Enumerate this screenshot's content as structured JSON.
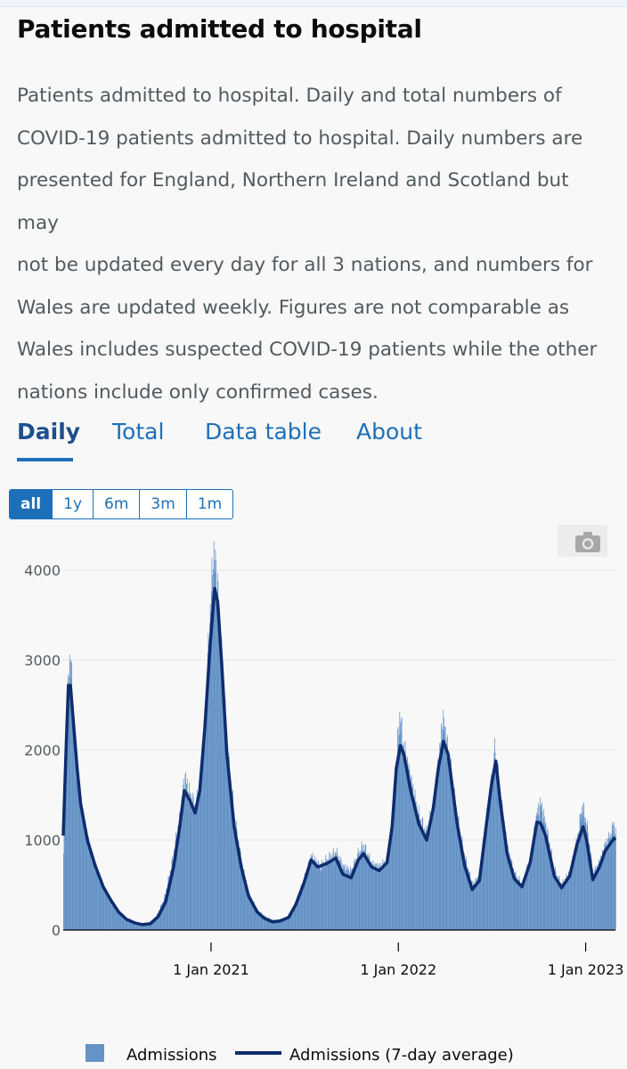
{
  "header": {
    "title": "Patients admitted to hospital",
    "description_lines": [
      "Patients admitted to hospital.  Daily and total numbers of",
      "COVID-19 patients admitted to hospital.  Daily numbers are",
      "presented for England, Northern Ireland and Scotland but may",
      "not be updated every day for all 3 nations, and numbers for",
      "Wales are updated weekly.   Figures are not comparable as",
      "Wales includes suspected COVID-19 patients while the other",
      "nations include only confirmed cases."
    ]
  },
  "tabs": [
    {
      "label": "Daily",
      "active": true
    },
    {
      "label": "Total",
      "active": false
    },
    {
      "label": "Data table",
      "active": false
    },
    {
      "label": "About",
      "active": false
    }
  ],
  "range_buttons": [
    {
      "label": "all",
      "active": true
    },
    {
      "label": "1y",
      "active": false
    },
    {
      "label": "6m",
      "active": false
    },
    {
      "label": "3m",
      "active": false
    },
    {
      "label": "1m",
      "active": false
    }
  ],
  "toolbar": {
    "icon": "camera-icon"
  },
  "colors": {
    "bar_fill": "#6593c6",
    "line": "#0e2c6e",
    "tab": "#1d70b8",
    "grid": "#e6e6e6"
  },
  "chart_data": {
    "type": "bar",
    "x_type": "date",
    "y_ticks": [
      0,
      1000,
      2000,
      3000,
      4000
    ],
    "ylim": [
      0,
      4200
    ],
    "xlim": [
      "2020-03-19",
      "2023-02-28"
    ],
    "x_ticks": [
      {
        "date": "2021-01-01",
        "label": "1 Jan 2021"
      },
      {
        "date": "2022-01-01",
        "label": "1 Jan 2022"
      },
      {
        "date": "2023-01-01",
        "label": "1 Jan 2023"
      }
    ],
    "grid": true,
    "legend_position": "bottom",
    "series": [
      {
        "name": "Admissions",
        "kind": "bar",
        "points": [
          [
            "2020-03-19",
            850
          ],
          [
            "2020-03-25",
            2300
          ],
          [
            "2020-03-29",
            2800
          ],
          [
            "2020-04-01",
            3100
          ],
          [
            "2020-04-05",
            2600
          ],
          [
            "2020-04-12",
            1900
          ],
          [
            "2020-04-20",
            1450
          ],
          [
            "2020-05-01",
            1100
          ],
          [
            "2020-05-15",
            800
          ],
          [
            "2020-06-01",
            500
          ],
          [
            "2020-06-15",
            360
          ],
          [
            "2020-07-01",
            220
          ],
          [
            "2020-07-15",
            130
          ],
          [
            "2020-08-01",
            90
          ],
          [
            "2020-08-15",
            70
          ],
          [
            "2020-09-01",
            80
          ],
          [
            "2020-09-15",
            140
          ],
          [
            "2020-10-01",
            340
          ],
          [
            "2020-10-15",
            700
          ],
          [
            "2020-11-01",
            1250
          ],
          [
            "2020-11-10",
            1700
          ],
          [
            "2020-11-20",
            1500
          ],
          [
            "2020-12-01",
            1350
          ],
          [
            "2020-12-10",
            1600
          ],
          [
            "2020-12-20",
            2300
          ],
          [
            "2020-12-28",
            3300
          ],
          [
            "2021-01-05",
            4150
          ],
          [
            "2021-01-12",
            3900
          ],
          [
            "2021-01-20",
            3100
          ],
          [
            "2021-02-01",
            2000
          ],
          [
            "2021-02-15",
            1250
          ],
          [
            "2021-03-01",
            750
          ],
          [
            "2021-03-15",
            400
          ],
          [
            "2021-04-01",
            220
          ],
          [
            "2021-04-15",
            150
          ],
          [
            "2021-05-01",
            110
          ],
          [
            "2021-05-15",
            110
          ],
          [
            "2021-06-01",
            150
          ],
          [
            "2021-06-15",
            300
          ],
          [
            "2021-07-01",
            560
          ],
          [
            "2021-07-15",
            820
          ],
          [
            "2021-08-01",
            700
          ],
          [
            "2021-08-15",
            780
          ],
          [
            "2021-09-01",
            860
          ],
          [
            "2021-09-15",
            700
          ],
          [
            "2021-10-01",
            650
          ],
          [
            "2021-10-15",
            850
          ],
          [
            "2021-10-25",
            930
          ],
          [
            "2021-11-10",
            720
          ],
          [
            "2021-11-25",
            700
          ],
          [
            "2021-12-10",
            780
          ],
          [
            "2021-12-20",
            1200
          ],
          [
            "2021-12-28",
            1900
          ],
          [
            "2022-01-03",
            2370
          ],
          [
            "2022-01-10",
            2050
          ],
          [
            "2022-01-25",
            1650
          ],
          [
            "2022-02-10",
            1250
          ],
          [
            "2022-02-25",
            1050
          ],
          [
            "2022-03-10",
            1400
          ],
          [
            "2022-03-20",
            1850
          ],
          [
            "2022-03-28",
            2350
          ],
          [
            "2022-04-08",
            1950
          ],
          [
            "2022-04-25",
            1250
          ],
          [
            "2022-05-10",
            800
          ],
          [
            "2022-05-25",
            500
          ],
          [
            "2022-06-08",
            600
          ],
          [
            "2022-06-20",
            1150
          ],
          [
            "2022-07-01",
            1650
          ],
          [
            "2022-07-08",
            2000
          ],
          [
            "2022-07-18",
            1500
          ],
          [
            "2022-08-01",
            900
          ],
          [
            "2022-08-15",
            620
          ],
          [
            "2022-08-30",
            500
          ],
          [
            "2022-09-15",
            800
          ],
          [
            "2022-09-28",
            1300
          ],
          [
            "2022-10-05",
            1400
          ],
          [
            "2022-10-15",
            1150
          ],
          [
            "2022-11-01",
            650
          ],
          [
            "2022-11-15",
            500
          ],
          [
            "2022-12-01",
            650
          ],
          [
            "2022-12-15",
            1000
          ],
          [
            "2022-12-25",
            1380
          ],
          [
            "2023-01-03",
            1150
          ],
          [
            "2023-01-15",
            620
          ],
          [
            "2023-01-28",
            750
          ],
          [
            "2023-02-08",
            950
          ],
          [
            "2023-02-18",
            1050
          ],
          [
            "2023-02-25",
            1180
          ],
          [
            "2023-02-28",
            1060
          ]
        ]
      },
      {
        "name": "Admissions (7-day average)",
        "kind": "line",
        "points": [
          [
            "2020-03-19",
            1050
          ],
          [
            "2020-03-25",
            2100
          ],
          [
            "2020-03-29",
            2720
          ],
          [
            "2020-04-02",
            2720
          ],
          [
            "2020-04-08",
            2300
          ],
          [
            "2020-04-15",
            1800
          ],
          [
            "2020-04-22",
            1400
          ],
          [
            "2020-05-05",
            1000
          ],
          [
            "2020-05-20",
            720
          ],
          [
            "2020-06-05",
            480
          ],
          [
            "2020-06-20",
            330
          ],
          [
            "2020-07-05",
            200
          ],
          [
            "2020-07-20",
            120
          ],
          [
            "2020-08-05",
            80
          ],
          [
            "2020-08-20",
            60
          ],
          [
            "2020-09-05",
            70
          ],
          [
            "2020-09-20",
            150
          ],
          [
            "2020-10-05",
            320
          ],
          [
            "2020-10-20",
            700
          ],
          [
            "2020-11-01",
            1150
          ],
          [
            "2020-11-10",
            1550
          ],
          [
            "2020-11-20",
            1450
          ],
          [
            "2020-12-01",
            1300
          ],
          [
            "2020-12-10",
            1550
          ],
          [
            "2020-12-20",
            2250
          ],
          [
            "2020-12-30",
            3150
          ],
          [
            "2021-01-08",
            3800
          ],
          [
            "2021-01-14",
            3650
          ],
          [
            "2021-01-22",
            2950
          ],
          [
            "2021-02-01",
            1950
          ],
          [
            "2021-02-15",
            1150
          ],
          [
            "2021-03-01",
            700
          ],
          [
            "2021-03-15",
            380
          ],
          [
            "2021-04-01",
            200
          ],
          [
            "2021-04-15",
            130
          ],
          [
            "2021-05-01",
            90
          ],
          [
            "2021-05-15",
            100
          ],
          [
            "2021-06-01",
            140
          ],
          [
            "2021-06-15",
            280
          ],
          [
            "2021-07-01",
            520
          ],
          [
            "2021-07-15",
            780
          ],
          [
            "2021-07-28",
            700
          ],
          [
            "2021-08-15",
            740
          ],
          [
            "2021-09-01",
            800
          ],
          [
            "2021-09-15",
            620
          ],
          [
            "2021-10-01",
            580
          ],
          [
            "2021-10-15",
            780
          ],
          [
            "2021-10-25",
            850
          ],
          [
            "2021-11-10",
            700
          ],
          [
            "2021-11-25",
            660
          ],
          [
            "2021-12-10",
            750
          ],
          [
            "2021-12-20",
            1150
          ],
          [
            "2021-12-28",
            1800
          ],
          [
            "2022-01-05",
            2050
          ],
          [
            "2022-01-12",
            1950
          ],
          [
            "2022-01-25",
            1550
          ],
          [
            "2022-02-10",
            1180
          ],
          [
            "2022-02-25",
            1000
          ],
          [
            "2022-03-10",
            1350
          ],
          [
            "2022-03-20",
            1800
          ],
          [
            "2022-03-30",
            2100
          ],
          [
            "2022-04-08",
            1950
          ],
          [
            "2022-04-25",
            1200
          ],
          [
            "2022-05-10",
            720
          ],
          [
            "2022-05-25",
            450
          ],
          [
            "2022-06-08",
            550
          ],
          [
            "2022-06-20",
            1100
          ],
          [
            "2022-07-01",
            1600
          ],
          [
            "2022-07-10",
            1880
          ],
          [
            "2022-07-18",
            1450
          ],
          [
            "2022-08-01",
            850
          ],
          [
            "2022-08-15",
            570
          ],
          [
            "2022-08-30",
            480
          ],
          [
            "2022-09-15",
            750
          ],
          [
            "2022-09-28",
            1200
          ],
          [
            "2022-10-05",
            1190
          ],
          [
            "2022-10-15",
            1050
          ],
          [
            "2022-11-01",
            600
          ],
          [
            "2022-11-15",
            470
          ],
          [
            "2022-12-01",
            600
          ],
          [
            "2022-12-15",
            950
          ],
          [
            "2022-12-27",
            1150
          ],
          [
            "2023-01-03",
            1000
          ],
          [
            "2023-01-15",
            560
          ],
          [
            "2023-01-28",
            700
          ],
          [
            "2023-02-08",
            880
          ],
          [
            "2023-02-18",
            960
          ],
          [
            "2023-02-25",
            1020
          ],
          [
            "2023-02-28",
            1000
          ]
        ]
      }
    ]
  }
}
